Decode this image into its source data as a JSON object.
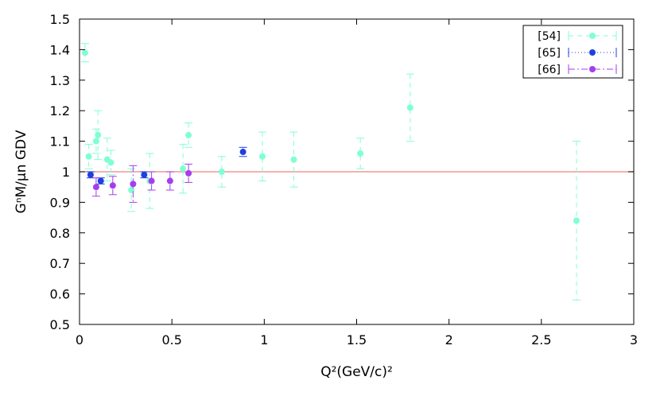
{
  "chart_data": {
    "type": "scatter",
    "title": "",
    "xlabel": "Q²(GeV/c)²",
    "ylabel": "GⁿM/μn GDV",
    "xlim": [
      0,
      3
    ],
    "ylim": [
      0.5,
      1.5
    ],
    "x_ticks": [
      "0",
      "0.5",
      "1",
      "1.5",
      "2",
      "2.5",
      "3"
    ],
    "y_ticks": [
      "0.5",
      "0.6",
      "0.7",
      "0.8",
      "0.9",
      "1",
      "1.1",
      "1.2",
      "1.3",
      "1.4",
      "1.5"
    ],
    "grid": false,
    "legend_position": "top-right",
    "reference_line": {
      "y": 1.0,
      "color": "#f08080"
    },
    "series": [
      {
        "name": "[54]",
        "color": "#7fffd4",
        "error_style": "dashed",
        "points": [
          {
            "x": 0.03,
            "y": 1.39,
            "yerr": 0.03
          },
          {
            "x": 0.05,
            "y": 1.05,
            "yerr": 0.04
          },
          {
            "x": 0.09,
            "y": 1.1,
            "yerr": 0.04
          },
          {
            "x": 0.1,
            "y": 1.12,
            "yerr": 0.08
          },
          {
            "x": 0.15,
            "y": 1.04,
            "yerr": 0.07
          },
          {
            "x": 0.17,
            "y": 1.03,
            "yerr": 0.04
          },
          {
            "x": 0.28,
            "y": 0.94,
            "yerr": 0.07
          },
          {
            "x": 0.38,
            "y": 0.97,
            "yerr": 0.09
          },
          {
            "x": 0.56,
            "y": 1.01,
            "yerr": 0.08
          },
          {
            "x": 0.59,
            "y": 1.12,
            "yerr": 0.04
          },
          {
            "x": 0.77,
            "y": 1.0,
            "yerr": 0.05
          },
          {
            "x": 0.99,
            "y": 1.05,
            "yerr": 0.08
          },
          {
            "x": 1.16,
            "y": 1.04,
            "yerr": 0.09
          },
          {
            "x": 1.52,
            "y": 1.06,
            "yerr": 0.05
          },
          {
            "x": 1.79,
            "y": 1.21,
            "yerr": 0.11
          },
          {
            "x": 2.69,
            "y": 0.84,
            "yerr": 0.26
          }
        ]
      },
      {
        "name": "[65]",
        "color": "#1f3fe0",
        "error_style": "dotted",
        "points": [
          {
            "x": 0.06,
            "y": 0.99,
            "yerr": 0.01
          },
          {
            "x": 0.115,
            "y": 0.97,
            "yerr": 0.01
          },
          {
            "x": 0.35,
            "y": 0.99,
            "yerr": 0.01
          },
          {
            "x": 0.885,
            "y": 1.065,
            "yerr": 0.015
          }
        ]
      },
      {
        "name": "[66]",
        "color": "#a33ef0",
        "error_style": "dashdot",
        "points": [
          {
            "x": 0.09,
            "y": 0.95,
            "yerr": 0.03
          },
          {
            "x": 0.18,
            "y": 0.955,
            "yerr": 0.03
          },
          {
            "x": 0.29,
            "y": 0.96,
            "yerr": 0.06
          },
          {
            "x": 0.39,
            "y": 0.97,
            "yerr": 0.03
          },
          {
            "x": 0.49,
            "y": 0.97,
            "yerr": 0.03
          },
          {
            "x": 0.59,
            "y": 0.995,
            "yerr": 0.03
          }
        ]
      }
    ]
  }
}
